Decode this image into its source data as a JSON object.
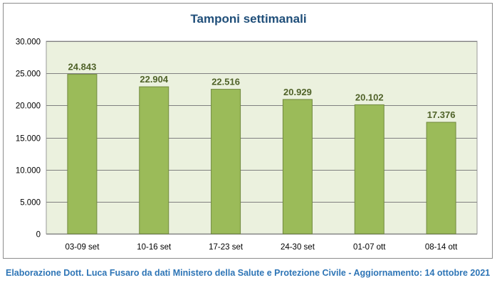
{
  "chart_data": {
    "type": "bar",
    "title": "Tamponi settimanali",
    "categories": [
      "03-09 set",
      "10-16 set",
      "17-23 set",
      "24-30 set",
      "01-07 ott",
      "08-14 ott"
    ],
    "values": [
      24843,
      22904,
      22516,
      20929,
      20102,
      17376
    ],
    "value_labels": [
      "24.843",
      "22.904",
      "22.516",
      "20.929",
      "20.102",
      "17.376"
    ],
    "ylim": [
      0,
      30000
    ],
    "y_ticks": [
      0,
      5000,
      10000,
      15000,
      20000,
      25000,
      30000
    ],
    "y_tick_labels": [
      "0",
      "5.000",
      "10.000",
      "15.000",
      "20.000",
      "25.000",
      "30.000"
    ],
    "xlabel": "",
    "ylabel": "",
    "grid": true,
    "legend": "none",
    "colors": {
      "bar": "#9bbb59",
      "bar_border": "#71893f",
      "plot_background": "#ebf1de",
      "grid": "#808080",
      "data_label": "#4f6228",
      "title": "#1f4e79"
    }
  },
  "footer": {
    "credit": "Elaborazione Dott. Luca Fusaro da dati Ministero della Salute e Protezione Civile - Aggiornamento: 14 ottobre 2021"
  }
}
